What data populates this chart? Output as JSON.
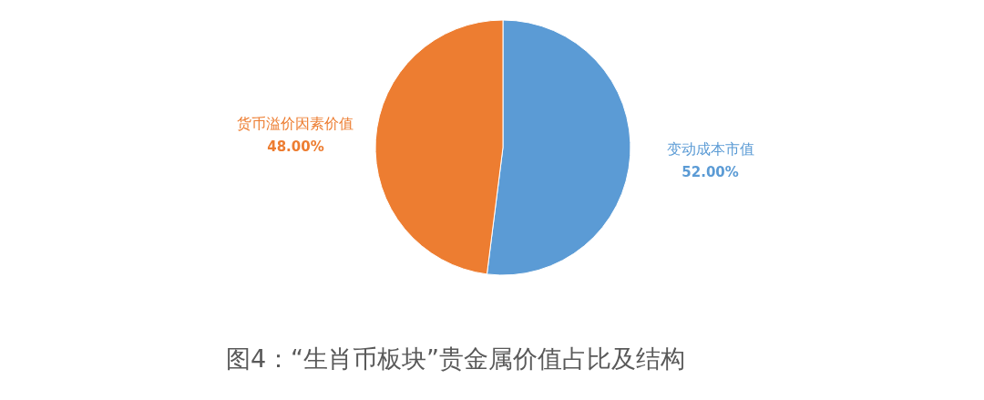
{
  "chart_data": {
    "type": "pie",
    "title": "图4：“生肖币板块”贵金属价值占比及结构",
    "categories": [
      "变动成本市值",
      "货币溢价因素价值"
    ],
    "values": [
      52,
      48
    ],
    "colors": [
      "#5b9bd5",
      "#ed7d31"
    ],
    "value_labels": [
      "52.00%",
      "48.00%"
    ]
  }
}
